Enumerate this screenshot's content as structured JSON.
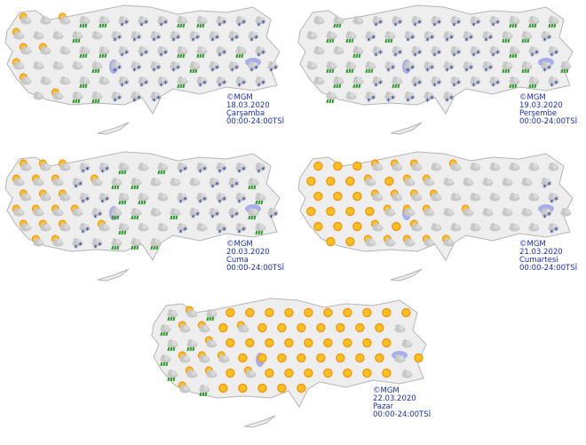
{
  "colors": {
    "land": "#eeeeee",
    "border": "#b5b5b5",
    "lake": "#a9aee8",
    "caption": "#1a2fb8",
    "snow": "#1b2a8a",
    "rain": "#2e9a2e",
    "sun": "#f39a1e",
    "cloud": "#c8c8c8"
  },
  "maps": [
    {
      "credit": "©MGM",
      "date": "18.03.2020",
      "day": "Çarşamba",
      "period": "00:00-24:00TSİ",
      "bands": [
        "partly-cloudy",
        "cloudy",
        "rain",
        "snow",
        "snow",
        "rain",
        "snow",
        "snow"
      ]
    },
    {
      "credit": "©MGM",
      "date": "19.03.2020",
      "day": "Perşembe",
      "period": "00:00-24:00TSİ",
      "bands": [
        "cloudy",
        "rain",
        "snow",
        "snow",
        "snow",
        "snow",
        "rain",
        "snow"
      ]
    },
    {
      "credit": "©MGM",
      "date": "20.03.2020",
      "day": "Cuma",
      "period": "00:00-24:00TSİ",
      "bands": [
        "partly-cloudy",
        "partly-cloudy",
        "snow",
        "rain",
        "cloudy",
        "snow",
        "snow",
        "rain"
      ]
    },
    {
      "credit": "©MGM",
      "date": "21.03.2020",
      "day": "Cumartesi",
      "period": "00:00-24:00TSİ",
      "bands": [
        "sunny",
        "sunny",
        "partly-cloudy",
        "partly-cloudy",
        "cloudy",
        "cloudy",
        "cloudy",
        "snow"
      ]
    },
    {
      "credit": "©MGM",
      "date": "22.03.2020",
      "day": "Pazar",
      "period": "00:00-24:00TSİ",
      "bands": [
        "rain",
        "partly-cloudy",
        "sunny",
        "sunny",
        "sunny",
        "sunny",
        "sunny",
        "cloudy"
      ]
    }
  ]
}
